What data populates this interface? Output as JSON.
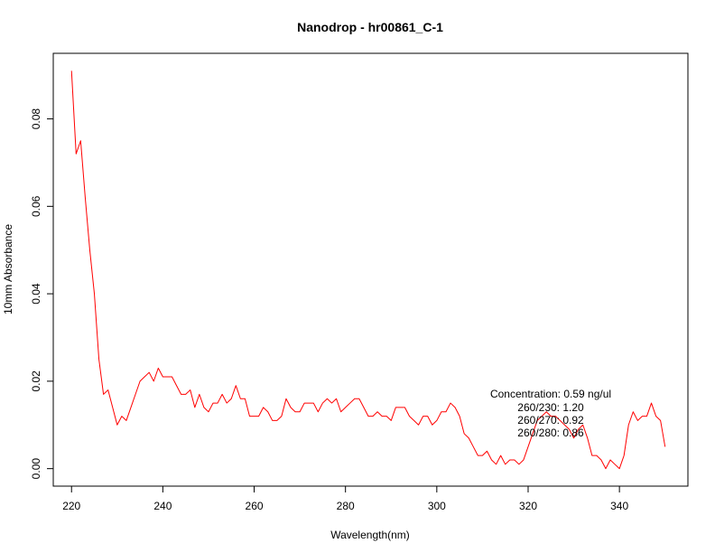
{
  "chart_data": {
    "type": "line",
    "title": "Nanodrop - hr00861_C-1",
    "xlabel": "Wavelength(nm)",
    "ylabel": "10mm Absorbance",
    "xlim": [
      216,
      355
    ],
    "ylim": [
      -0.004,
      0.095
    ],
    "xticks": [
      220,
      240,
      260,
      280,
      300,
      320,
      340
    ],
    "yticks": [
      0.0,
      0.02,
      0.04,
      0.06,
      0.08
    ],
    "ytick_labels": [
      "0.00",
      "0.02",
      "0.04",
      "0.06",
      "0.08"
    ],
    "line_color": "#ff0000",
    "grid": false,
    "series": [
      {
        "x": [
          220,
          221,
          222,
          223,
          224,
          225,
          226,
          227,
          228,
          229,
          230,
          231,
          232,
          233,
          234,
          235,
          236,
          237,
          238,
          239,
          240,
          241,
          242,
          243,
          244,
          245,
          246,
          247,
          248,
          249,
          250,
          251,
          252,
          253,
          254,
          255,
          256,
          257,
          258,
          259,
          260,
          261,
          262,
          263,
          264,
          265,
          266,
          267,
          268,
          269,
          270,
          271,
          272,
          273,
          274,
          275,
          276,
          277,
          278,
          279,
          280,
          281,
          282,
          283,
          284,
          285,
          286,
          287,
          288,
          289,
          290,
          291,
          292,
          293,
          294,
          295,
          296,
          297,
          298,
          299,
          300,
          301,
          302,
          303,
          304,
          305,
          306,
          307,
          308,
          309,
          310,
          311,
          312,
          313,
          314,
          315,
          316,
          317,
          318,
          319,
          320,
          321,
          322,
          323,
          324,
          325,
          326,
          327,
          328,
          329,
          330,
          331,
          332,
          333,
          334,
          335,
          336,
          337,
          338,
          339,
          340,
          341,
          342,
          343,
          344,
          345,
          346,
          347,
          348,
          349,
          350
        ],
        "y": [
          0.091,
          0.072,
          0.075,
          0.062,
          0.05,
          0.04,
          0.025,
          0.017,
          0.018,
          0.014,
          0.01,
          0.012,
          0.011,
          0.014,
          0.017,
          0.02,
          0.021,
          0.022,
          0.02,
          0.023,
          0.021,
          0.021,
          0.021,
          0.019,
          0.017,
          0.017,
          0.018,
          0.014,
          0.017,
          0.014,
          0.013,
          0.015,
          0.015,
          0.017,
          0.015,
          0.016,
          0.019,
          0.016,
          0.016,
          0.012,
          0.012,
          0.012,
          0.014,
          0.013,
          0.011,
          0.011,
          0.012,
          0.016,
          0.014,
          0.013,
          0.013,
          0.015,
          0.015,
          0.015,
          0.013,
          0.015,
          0.016,
          0.015,
          0.016,
          0.013,
          0.014,
          0.015,
          0.016,
          0.016,
          0.014,
          0.012,
          0.012,
          0.013,
          0.012,
          0.012,
          0.011,
          0.014,
          0.014,
          0.014,
          0.012,
          0.011,
          0.01,
          0.012,
          0.012,
          0.01,
          0.011,
          0.013,
          0.013,
          0.015,
          0.014,
          0.012,
          0.008,
          0.007,
          0.005,
          0.003,
          0.003,
          0.004,
          0.002,
          0.001,
          0.003,
          0.001,
          0.002,
          0.002,
          0.001,
          0.002,
          0.005,
          0.008,
          0.011,
          0.012,
          0.013,
          0.012,
          0.012,
          0.011,
          0.01,
          0.009,
          0.007,
          0.009,
          0.01,
          0.007,
          0.003,
          0.003,
          0.002,
          0.0,
          0.002,
          0.001,
          0.0,
          0.003,
          0.01,
          0.013,
          0.011,
          0.012,
          0.012,
          0.015,
          0.012,
          0.011,
          0.005
        ]
      }
    ],
    "annotations": [
      "Concentration: 0.59 ng/ul",
      "260/230: 1.20",
      "260/270: 0.92",
      "260/280: 0.86"
    ]
  }
}
